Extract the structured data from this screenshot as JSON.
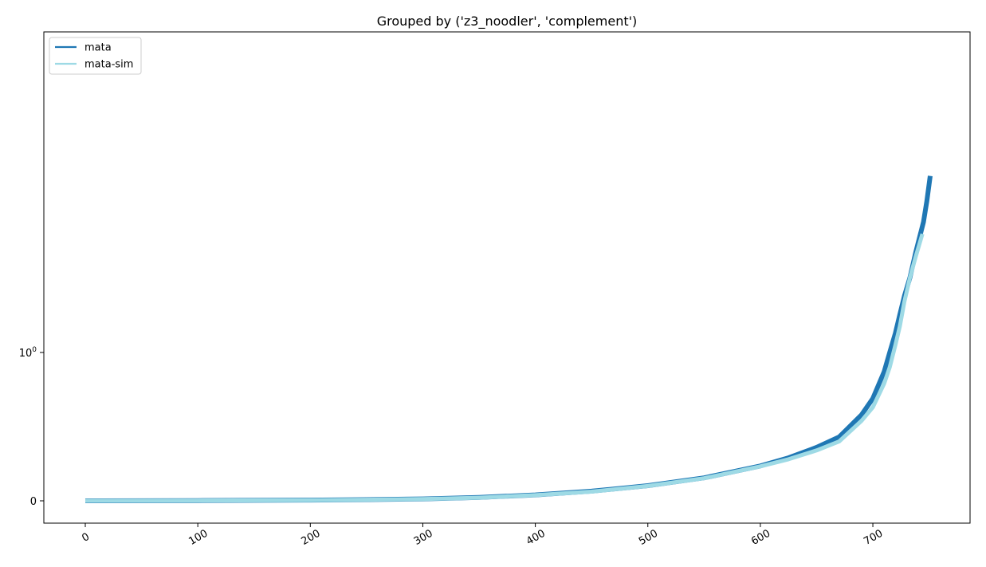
{
  "chart_data": {
    "type": "line",
    "title": "Grouped by ('z3_noodler', 'complement')",
    "xlabel": "",
    "ylabel": "",
    "x_ticks": [
      0,
      100,
      200,
      300,
      400,
      500,
      600,
      700
    ],
    "y_scale": "symlog",
    "y_ticks": [
      {
        "value": 0,
        "label": "0",
        "exp": ""
      },
      {
        "value": 1,
        "label": "10",
        "exp": "0"
      }
    ],
    "xlim": [
      -36,
      787
    ],
    "legend_position": "top-left",
    "grid": false,
    "series": [
      {
        "name": "mata",
        "color": "#1f77b4",
        "points": [
          [
            0,
            0
          ],
          [
            100,
            0.0016
          ],
          [
            200,
            0.005
          ],
          [
            250,
            0.008
          ],
          [
            300,
            0.013
          ],
          [
            350,
            0.023
          ],
          [
            400,
            0.04
          ],
          [
            450,
            0.065
          ],
          [
            500,
            0.102
          ],
          [
            550,
            0.155
          ],
          [
            600,
            0.235
          ],
          [
            625,
            0.29
          ],
          [
            650,
            0.36
          ],
          [
            670,
            0.43
          ],
          [
            690,
            0.58
          ],
          [
            700,
            0.69
          ],
          [
            710,
            0.87
          ],
          [
            715,
            1.0
          ],
          [
            720,
            1.35
          ],
          [
            724,
            1.8
          ],
          [
            728,
            2.4
          ],
          [
            733,
            3.2
          ],
          [
            738,
            4.7
          ],
          [
            745,
            7.6
          ],
          [
            748,
            10.5
          ],
          [
            751,
            15.5
          ]
        ]
      },
      {
        "name": "mata-sim",
        "color": "#9edae5",
        "points": [
          [
            0,
            0
          ],
          [
            100,
            0.0015
          ],
          [
            200,
            0.0045
          ],
          [
            250,
            0.0075
          ],
          [
            300,
            0.012
          ],
          [
            350,
            0.021
          ],
          [
            400,
            0.038
          ],
          [
            450,
            0.062
          ],
          [
            500,
            0.1
          ],
          [
            550,
            0.152
          ],
          [
            600,
            0.232
          ],
          [
            625,
            0.28
          ],
          [
            650,
            0.34
          ],
          [
            670,
            0.4
          ],
          [
            690,
            0.54
          ],
          [
            700,
            0.63
          ],
          [
            710,
            0.79
          ],
          [
            715,
            0.9
          ],
          [
            720,
            1.12
          ],
          [
            724,
            1.5
          ],
          [
            728,
            2.2
          ],
          [
            733,
            3.2
          ],
          [
            738,
            4.4
          ],
          [
            744,
            6.3
          ]
        ]
      }
    ]
  }
}
